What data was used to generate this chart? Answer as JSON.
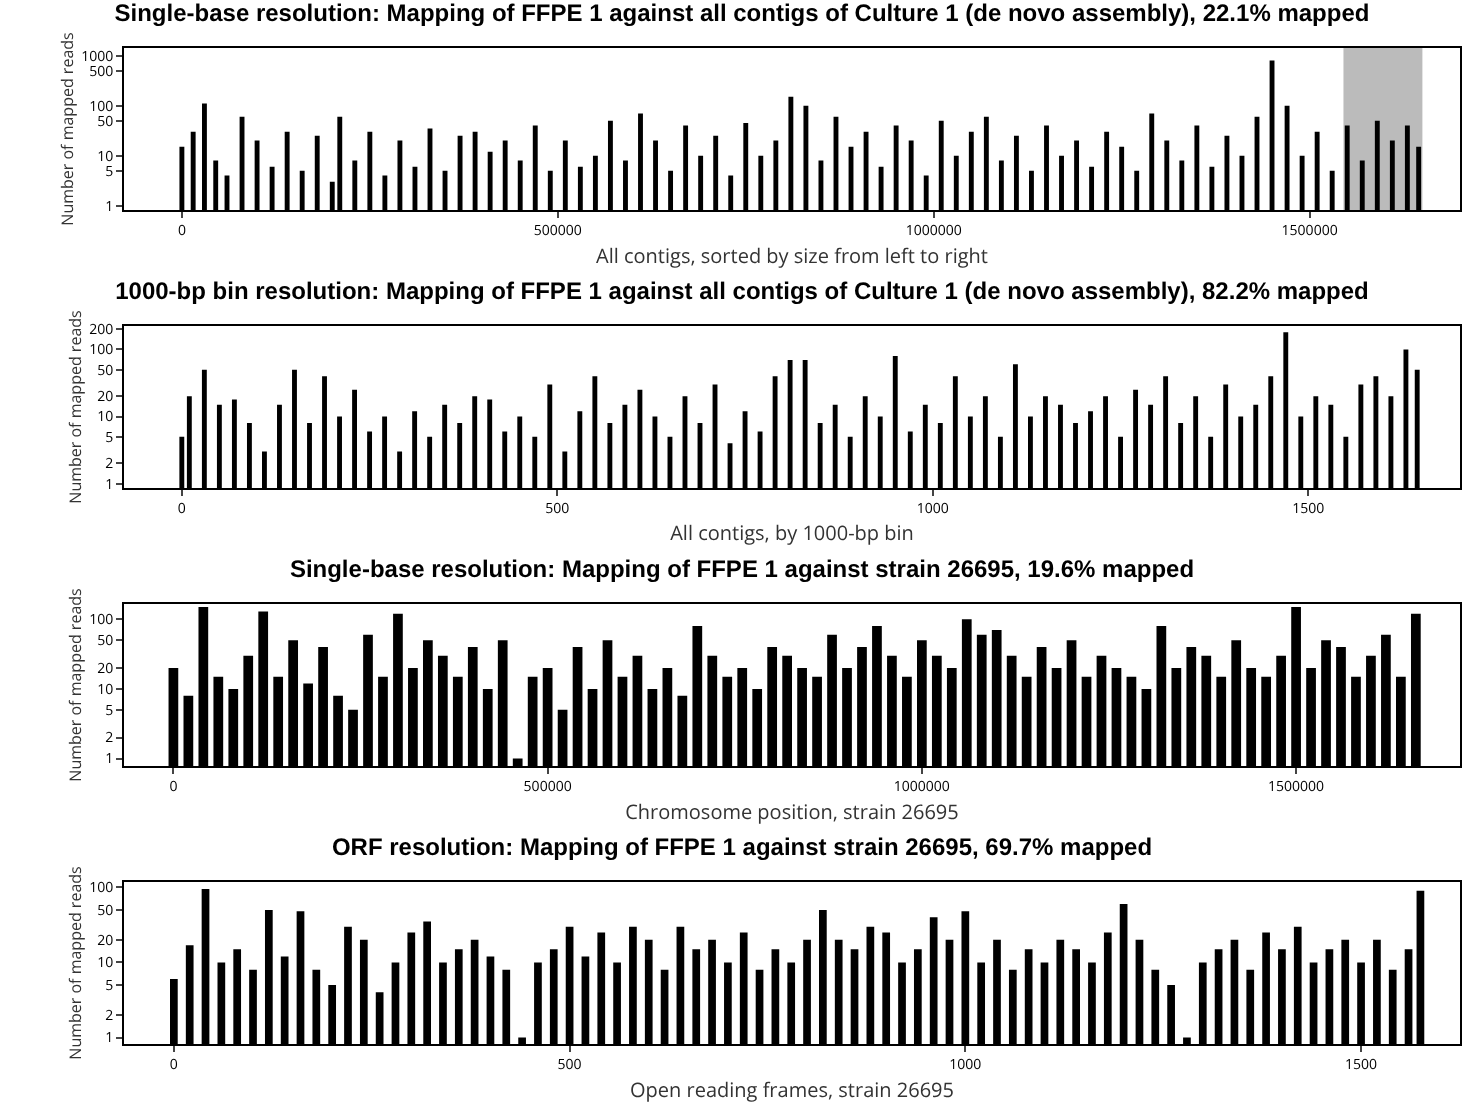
{
  "chart_data": [
    {
      "type": "bar",
      "title": "Single-base resolution: Mapping of FFPE 1 against all contigs of Culture 1 (de novo assembly), 22.1% mapped",
      "xlabel": "All contigs, sorted by size from left to right",
      "ylabel": "Number of mapped reads",
      "log": "y",
      "grid": false,
      "x": [
        0,
        15000,
        30000,
        45000,
        60000,
        80000,
        100000,
        120000,
        140000,
        160000,
        180000,
        200000,
        210000,
        230000,
        250000,
        270000,
        290000,
        310000,
        330000,
        350000,
        370000,
        390000,
        410000,
        430000,
        450000,
        470000,
        490000,
        510000,
        530000,
        550000,
        570000,
        590000,
        610000,
        630000,
        650000,
        670000,
        690000,
        710000,
        730000,
        750000,
        770000,
        790000,
        810000,
        830000,
        850000,
        870000,
        890000,
        910000,
        930000,
        950000,
        970000,
        990000,
        1010000,
        1030000,
        1050000,
        1070000,
        1090000,
        1110000,
        1130000,
        1150000,
        1170000,
        1190000,
        1210000,
        1230000,
        1250000,
        1270000,
        1290000,
        1310000,
        1330000,
        1350000,
        1370000,
        1390000,
        1410000,
        1430000,
        1450000,
        1470000,
        1490000,
        1510000,
        1530000,
        1550000,
        1570000,
        1590000,
        1610000,
        1630000,
        1645000
      ],
      "series": [
        {
          "color": "#000000",
          "values": [
            15,
            30,
            110,
            8,
            4,
            60,
            20,
            6,
            30,
            5,
            25,
            3,
            60,
            8,
            30,
            4,
            20,
            6,
            35,
            5,
            25,
            30,
            12,
            20,
            8,
            40,
            5,
            20,
            6,
            10,
            50,
            8,
            70,
            20,
            5,
            40,
            10,
            25,
            4,
            45,
            10,
            20,
            150,
            100,
            8,
            60,
            15,
            30,
            6,
            40,
            20,
            4,
            50,
            10,
            30,
            60,
            8,
            25,
            5,
            40,
            10,
            20,
            6,
            30,
            15,
            5,
            70,
            20,
            8,
            40,
            6,
            25,
            10,
            60,
            800,
            100,
            10,
            30,
            5,
            40,
            8,
            50,
            20,
            40,
            15
          ]
        }
      ],
      "bands": [
        {
          "axis": "x",
          "from": 1545000,
          "to": 1650000,
          "color": "#bbbbbb"
        }
      ],
      "xlim": [
        -77000,
        1700000
      ],
      "xticks": [
        0,
        500000,
        1000000,
        1500000
      ],
      "ylim": [
        0.82,
        1420
      ],
      "yticks": [
        1,
        5,
        10,
        50,
        100,
        500,
        1000
      ]
    },
    {
      "type": "bar",
      "title": "1000-bp bin resolution: Mapping of FFPE 1 against all contigs of Culture 1 (de novo assembly), 82.2% mapped",
      "xlabel": "All contigs, by 1000-bp bin",
      "ylabel": "Number of mapped reads",
      "log": "y",
      "grid": false,
      "x": [
        0,
        10,
        30,
        50,
        70,
        90,
        110,
        130,
        150,
        170,
        190,
        210,
        230,
        250,
        270,
        290,
        310,
        330,
        350,
        370,
        390,
        410,
        430,
        450,
        470,
        490,
        510,
        530,
        550,
        570,
        590,
        610,
        630,
        650,
        670,
        690,
        710,
        730,
        750,
        770,
        790,
        810,
        830,
        850,
        870,
        890,
        910,
        930,
        950,
        970,
        990,
        1010,
        1030,
        1050,
        1070,
        1090,
        1110,
        1130,
        1150,
        1170,
        1190,
        1210,
        1230,
        1250,
        1270,
        1290,
        1310,
        1330,
        1350,
        1370,
        1390,
        1410,
        1430,
        1450,
        1470,
        1490,
        1510,
        1530,
        1550,
        1570,
        1590,
        1610,
        1630,
        1645
      ],
      "series": [
        {
          "color": "#000000",
          "values": [
            5,
            20,
            50,
            15,
            18,
            8,
            3,
            15,
            50,
            8,
            40,
            10,
            25,
            6,
            10,
            3,
            12,
            5,
            15,
            8,
            20,
            18,
            6,
            10,
            5,
            30,
            3,
            12,
            40,
            8,
            15,
            25,
            10,
            5,
            20,
            8,
            30,
            4,
            12,
            6,
            40,
            70,
            70,
            8,
            15,
            5,
            20,
            10,
            80,
            6,
            15,
            8,
            40,
            10,
            20,
            5,
            60,
            10,
            20,
            15,
            8,
            12,
            20,
            5,
            25,
            15,
            40,
            8,
            20,
            5,
            30,
            10,
            15,
            40,
            180,
            10,
            20,
            15,
            5,
            30,
            40,
            20,
            100,
            50
          ]
        }
      ],
      "xlim": [
        -77,
        1702
      ],
      "xticks": [
        0,
        500,
        1000,
        1500
      ],
      "ylim": [
        0.86,
        224
      ],
      "yticks": [
        1,
        2,
        5,
        10,
        20,
        50,
        100,
        200
      ]
    },
    {
      "type": "bar",
      "title": "Single-base resolution: Mapping of FFPE 1 against strain 26695, 19.6% mapped",
      "xlabel": "Chromosome position, strain 26695",
      "ylabel": "Number of mapped reads",
      "log": "y",
      "grid": false,
      "x": [
        0,
        20000,
        40000,
        60000,
        80000,
        100000,
        120000,
        140000,
        160000,
        180000,
        200000,
        220000,
        240000,
        260000,
        280000,
        300000,
        320000,
        340000,
        360000,
        380000,
        400000,
        420000,
        440000,
        460000,
        480000,
        500000,
        520000,
        540000,
        560000,
        580000,
        600000,
        620000,
        640000,
        660000,
        680000,
        700000,
        720000,
        740000,
        760000,
        780000,
        800000,
        820000,
        840000,
        860000,
        880000,
        900000,
        920000,
        940000,
        960000,
        980000,
        1000000,
        1020000,
        1040000,
        1060000,
        1080000,
        1100000,
        1120000,
        1140000,
        1160000,
        1180000,
        1200000,
        1220000,
        1240000,
        1260000,
        1280000,
        1300000,
        1320000,
        1340000,
        1360000,
        1380000,
        1400000,
        1420000,
        1440000,
        1460000,
        1480000,
        1500000,
        1520000,
        1540000,
        1560000,
        1580000,
        1600000,
        1620000,
        1640000,
        1660000
      ],
      "series": [
        {
          "color": "#000000",
          "values": [
            20,
            8,
            150,
            15,
            10,
            30,
            130,
            15,
            50,
            12,
            40,
            8,
            5,
            60,
            15,
            120,
            20,
            50,
            30,
            15,
            40,
            10,
            50,
            1,
            15,
            20,
            5,
            40,
            10,
            50,
            15,
            30,
            10,
            20,
            8,
            80,
            30,
            15,
            20,
            10,
            40,
            30,
            20,
            15,
            60,
            20,
            40,
            80,
            30,
            15,
            50,
            30,
            20,
            100,
            60,
            70,
            30,
            15,
            40,
            20,
            50,
            15,
            30,
            20,
            15,
            10,
            80,
            20,
            40,
            30,
            15,
            50,
            20,
            15,
            30,
            150,
            20,
            50,
            40,
            15,
            30,
            60,
            15,
            120
          ]
        }
      ],
      "xlim": [
        -66000,
        1719000
      ],
      "xticks": [
        0,
        500000,
        1000000,
        1500000
      ],
      "ylim": [
        0.78,
        166
      ],
      "yticks": [
        1,
        2,
        5,
        10,
        20,
        50,
        100
      ]
    },
    {
      "type": "bar",
      "title": "ORF resolution: Mapping of FFPE 1 against strain 26695, 69.7% mapped",
      "xlabel": "Open reading frames, strain 26695",
      "ylabel": "Number of mapped reads",
      "log": "y",
      "grid": false,
      "x": [
        0,
        20,
        40,
        60,
        80,
        100,
        120,
        140,
        160,
        180,
        200,
        220,
        240,
        260,
        280,
        300,
        320,
        340,
        360,
        380,
        400,
        420,
        440,
        460,
        480,
        500,
        520,
        540,
        560,
        580,
        600,
        620,
        640,
        660,
        680,
        700,
        720,
        740,
        760,
        780,
        800,
        820,
        840,
        860,
        880,
        900,
        920,
        940,
        960,
        980,
        1000,
        1020,
        1040,
        1060,
        1080,
        1100,
        1120,
        1140,
        1160,
        1180,
        1200,
        1220,
        1240,
        1260,
        1280,
        1300,
        1320,
        1340,
        1360,
        1380,
        1400,
        1420,
        1440,
        1460,
        1480,
        1500,
        1520,
        1540,
        1560,
        1575
      ],
      "series": [
        {
          "color": "#000000",
          "values": [
            6,
            17,
            95,
            10,
            15,
            8,
            50,
            12,
            48,
            8,
            5,
            30,
            20,
            4,
            10,
            25,
            35,
            10,
            15,
            20,
            12,
            8,
            1,
            10,
            15,
            30,
            12,
            25,
            10,
            30,
            20,
            8,
            30,
            15,
            20,
            10,
            25,
            8,
            15,
            10,
            20,
            50,
            20,
            15,
            30,
            25,
            10,
            15,
            40,
            20,
            48,
            10,
            20,
            8,
            15,
            10,
            20,
            15,
            10,
            25,
            60,
            20,
            8,
            5,
            1,
            10,
            15,
            20,
            8,
            25,
            15,
            30,
            10,
            15,
            20,
            10,
            20,
            8,
            15,
            90
          ]
        }
      ],
      "xlim": [
        -63,
        1625
      ],
      "xticks": [
        0,
        500,
        1000,
        1500
      ],
      "ylim": [
        0.82,
        118
      ],
      "yticks": [
        1,
        2,
        5,
        10,
        20,
        50,
        100
      ]
    }
  ]
}
